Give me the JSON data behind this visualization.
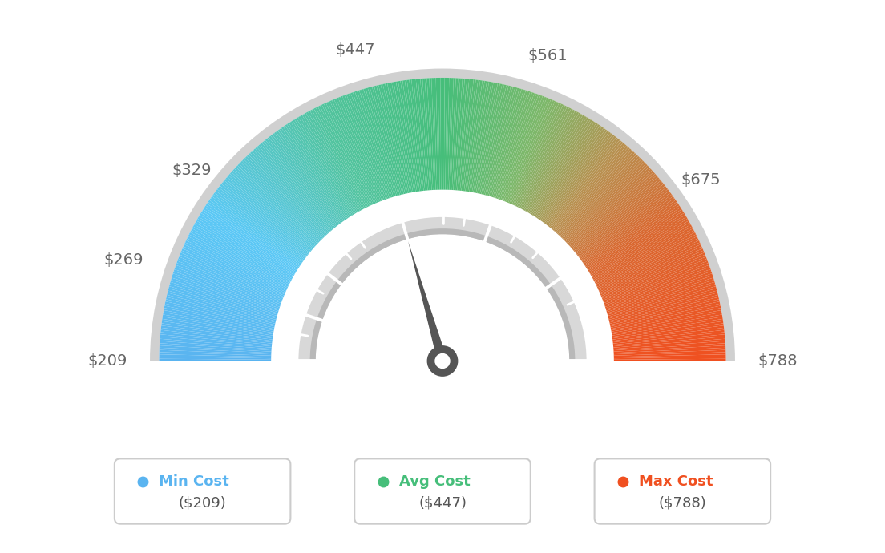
{
  "min_val": 209,
  "max_val": 788,
  "avg_val": 447,
  "needle_value": 447,
  "color_stops": [
    [
      0.0,
      "#5ab4f0"
    ],
    [
      0.18,
      "#5bc8f5"
    ],
    [
      0.35,
      "#52c4a0"
    ],
    [
      0.5,
      "#46be7a"
    ],
    [
      0.62,
      "#7db86a"
    ],
    [
      0.72,
      "#b89050"
    ],
    [
      0.82,
      "#d96830"
    ],
    [
      1.0,
      "#f05020"
    ]
  ],
  "outer_border_color": "#d0d0d0",
  "inner_channel_color": "#d8d8d8",
  "inner_channel_dark": "#b8b8b8",
  "white_gap_color": "#ffffff",
  "needle_color": "#555555",
  "needle_circle_color": "#555555",
  "tick_color": "#ffffff",
  "label_color": "#666666",
  "bg_color": "#ffffff",
  "legend": [
    {
      "label": "Min Cost",
      "value": "($209)",
      "color": "#5ab4f0"
    },
    {
      "label": "Avg Cost",
      "value": "($447)",
      "color": "#46be7a"
    },
    {
      "label": "Max Cost",
      "value": "($788)",
      "color": "#f05020"
    }
  ],
  "main_tick_values": [
    209,
    269,
    329,
    447,
    561,
    675,
    788
  ],
  "all_tick_values": [
    209,
    243,
    269,
    304,
    329,
    364,
    388,
    447,
    500,
    527,
    561,
    595,
    631,
    675,
    710,
    788
  ],
  "label_values": [
    209,
    269,
    329,
    447,
    561,
    675,
    788
  ],
  "label_texts": [
    "$209",
    "$269",
    "$329",
    "$447",
    "$561",
    "$675",
    "$788"
  ]
}
